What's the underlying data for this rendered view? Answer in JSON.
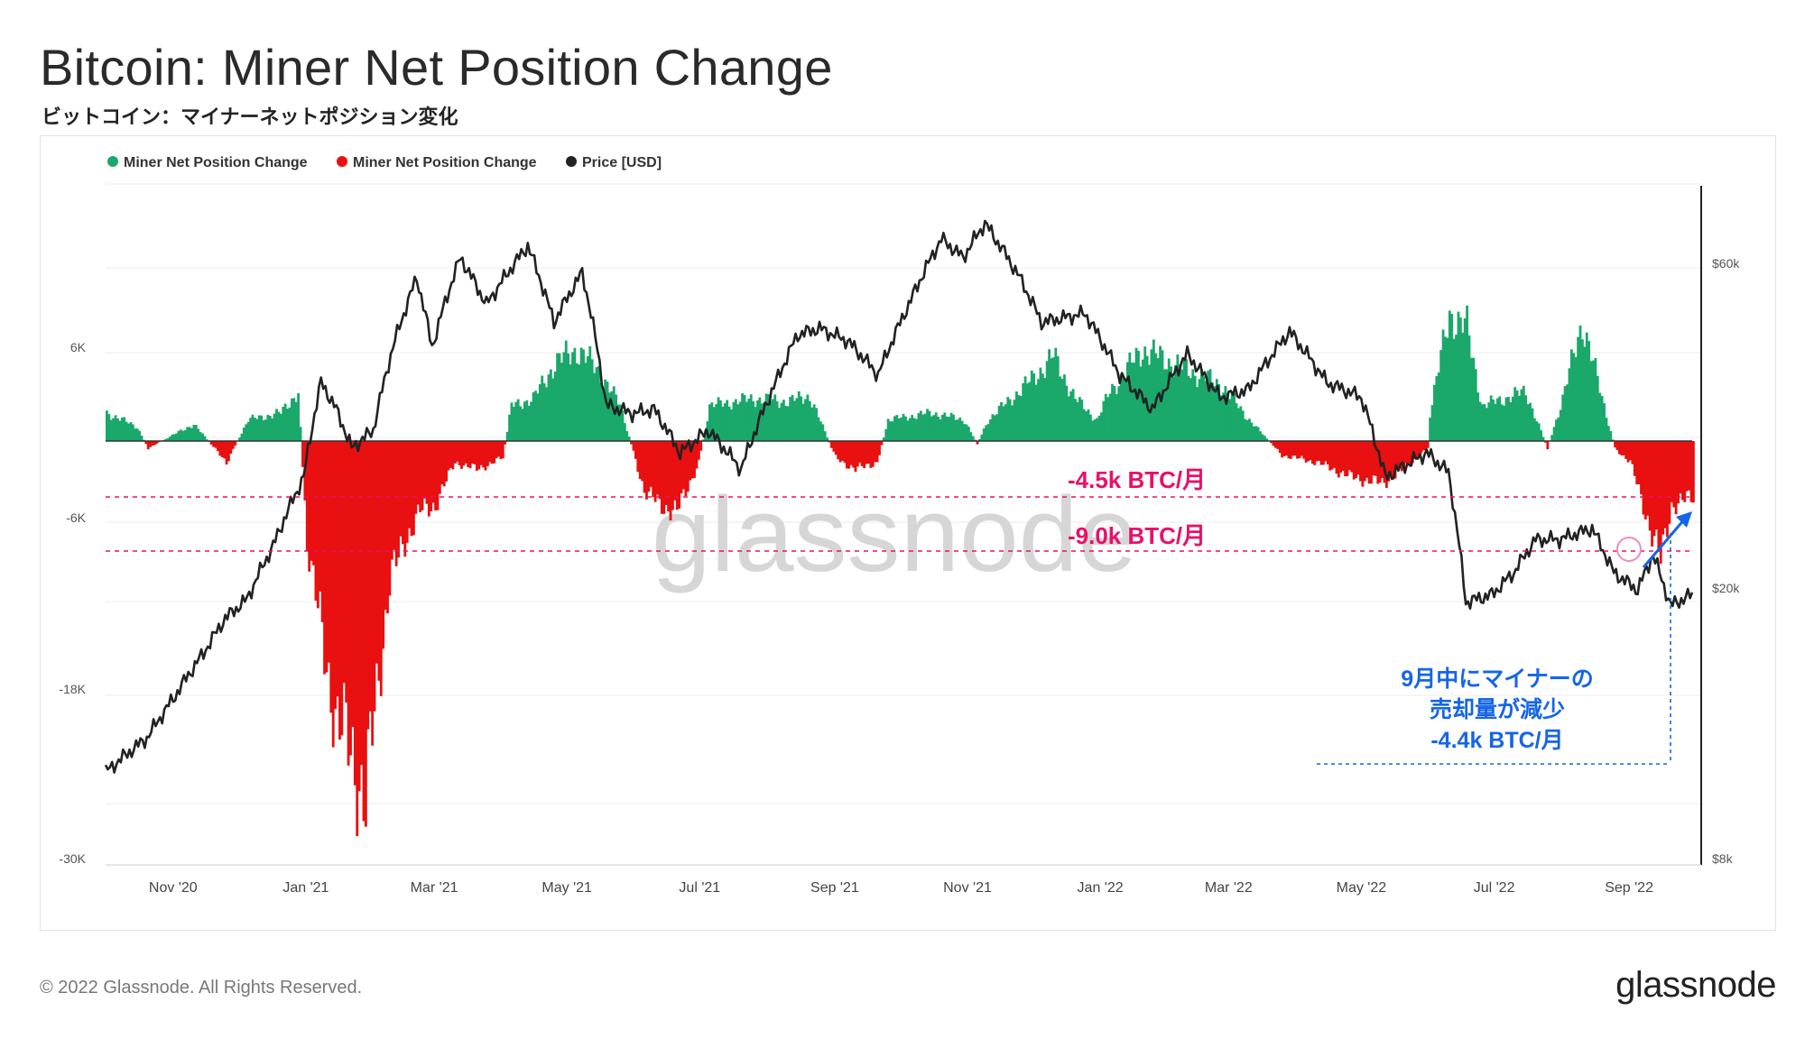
{
  "header": {
    "title": "Bitcoin: Miner Net Position Change",
    "subtitle": "ビットコイン：マイナーネットポジション変化"
  },
  "footer": {
    "copyright": "© 2022 Glassnode. All Rights Reserved.",
    "brand": "glassnode"
  },
  "watermark": "glassnode",
  "colors": {
    "positive": "#1aa86b",
    "negative": "#e81010",
    "price": "#222222",
    "annotation_pink": "#e8106a",
    "annotation_blue": "#1565e8"
  },
  "annotations": {
    "line1": "-4.5k BTC/月",
    "line2": "-9.0k BTC/月",
    "callout": [
      "9月中にマイナーの",
      "売却量が減少",
      "-4.4k BTC/月"
    ]
  },
  "chart_data": {
    "type": "bar",
    "legend": [
      {
        "label": "Miner Net Position Change",
        "color": "#1aa86b"
      },
      {
        "label": "Miner Net Position Change",
        "color": "#e81010"
      },
      {
        "label": "Price [USD]",
        "color": "#222222"
      }
    ],
    "legend_position": "top-left",
    "x_ticks": [
      "Nov '20",
      "Jan '21",
      "Mar '21",
      "May '21",
      "Jul '21",
      "Sep '21",
      "Nov '21",
      "Jan '22",
      "Mar '22",
      "May '22",
      "Jul '22",
      "Sep '22"
    ],
    "left_axis": {
      "ticks": [
        "6K",
        "-6K",
        "-18K",
        "-30K"
      ],
      "ylim": [
        -30000,
        12000
      ]
    },
    "right_axis": {
      "ticks": [
        "$60k",
        "$20k",
        "$8k"
      ],
      "scale": "log"
    },
    "x_range": [
      "2020-10-01",
      "2022-09-30"
    ],
    "series": [
      {
        "name": "Miner Net Position Change",
        "type": "bar",
        "anchors": [
          [
            "2020-10-01",
            2000
          ],
          [
            "2020-10-15",
            1000
          ],
          [
            "2020-10-20",
            -500
          ],
          [
            "2020-11-10",
            1200
          ],
          [
            "2020-11-25",
            -1500
          ],
          [
            "2020-12-05",
            1500
          ],
          [
            "2020-12-20",
            2000
          ],
          [
            "2020-12-28",
            3500
          ],
          [
            "2021-01-01",
            -7000
          ],
          [
            "2021-01-08",
            -14000
          ],
          [
            "2021-01-15",
            -20000
          ],
          [
            "2021-01-22",
            -22000
          ],
          [
            "2021-01-28",
            -26000
          ],
          [
            "2021-02-01",
            -19000
          ],
          [
            "2021-02-08",
            -10000
          ],
          [
            "2021-02-15",
            -7000
          ],
          [
            "2021-02-22",
            -5000
          ],
          [
            "2021-03-01",
            -4500
          ],
          [
            "2021-03-10",
            -1500
          ],
          [
            "2021-03-20",
            -2000
          ],
          [
            "2021-04-01",
            -1200
          ],
          [
            "2021-04-05",
            2500
          ],
          [
            "2021-04-15",
            3000
          ],
          [
            "2021-04-25",
            5500
          ],
          [
            "2021-05-05",
            6500
          ],
          [
            "2021-05-15",
            5000
          ],
          [
            "2021-05-25",
            2500
          ],
          [
            "2021-06-05",
            -3500
          ],
          [
            "2021-06-12",
            -4500
          ],
          [
            "2021-06-20",
            -5000
          ],
          [
            "2021-06-30",
            -1500
          ],
          [
            "2021-07-05",
            2500
          ],
          [
            "2021-07-25",
            3000
          ],
          [
            "2021-08-10",
            2800
          ],
          [
            "2021-08-20",
            3200
          ],
          [
            "2021-09-01",
            -1200
          ],
          [
            "2021-09-10",
            -2000
          ],
          [
            "2021-09-20",
            -1500
          ],
          [
            "2021-09-25",
            1500
          ],
          [
            "2021-10-15",
            2000
          ],
          [
            "2021-10-30",
            1500
          ],
          [
            "2021-11-05",
            -200
          ],
          [
            "2021-11-10",
            1500
          ],
          [
            "2021-12-01",
            4500
          ],
          [
            "2021-12-10",
            6000
          ],
          [
            "2021-12-20",
            3000
          ],
          [
            "2021-12-30",
            1500
          ],
          [
            "2022-01-05",
            3500
          ],
          [
            "2022-01-20",
            6500
          ],
          [
            "2022-02-10",
            5000
          ],
          [
            "2022-02-25",
            4000
          ],
          [
            "2022-03-10",
            1500
          ],
          [
            "2022-03-25",
            -1000
          ],
          [
            "2022-04-10",
            -1500
          ],
          [
            "2022-04-25",
            -2500
          ],
          [
            "2022-05-10",
            -3000
          ],
          [
            "2022-05-20",
            -2000
          ],
          [
            "2022-05-31",
            -500
          ],
          [
            "2022-06-01",
            2000
          ],
          [
            "2022-06-10",
            9000
          ],
          [
            "2022-06-18",
            8000
          ],
          [
            "2022-06-25",
            2500
          ],
          [
            "2022-07-05",
            3000
          ],
          [
            "2022-07-15",
            3500
          ],
          [
            "2022-07-25",
            -500
          ],
          [
            "2022-08-01",
            3000
          ],
          [
            "2022-08-10",
            8500
          ],
          [
            "2022-08-20",
            2500
          ],
          [
            "2022-08-25",
            -500
          ],
          [
            "2022-09-01",
            -1500
          ],
          [
            "2022-09-08",
            -5000
          ],
          [
            "2022-09-15",
            -8500
          ],
          [
            "2022-09-20",
            -4500
          ],
          [
            "2022-09-30",
            -4000
          ]
        ]
      },
      {
        "name": "Price [USD]",
        "type": "line",
        "anchors": [
          [
            "2020-10-01",
            10700
          ],
          [
            "2020-10-20",
            12000
          ],
          [
            "2020-11-01",
            13700
          ],
          [
            "2020-11-15",
            16000
          ],
          [
            "2020-11-25",
            18000
          ],
          [
            "2020-12-05",
            19200
          ],
          [
            "2020-12-17",
            23000
          ],
          [
            "2020-12-31",
            29000
          ],
          [
            "2021-01-08",
            40000
          ],
          [
            "2021-01-15",
            36500
          ],
          [
            "2021-01-22",
            32000
          ],
          [
            "2021-02-01",
            34000
          ],
          [
            "2021-02-10",
            45000
          ],
          [
            "2021-02-21",
            57000
          ],
          [
            "2021-02-28",
            45000
          ],
          [
            "2021-03-13",
            61000
          ],
          [
            "2021-03-25",
            52000
          ],
          [
            "2021-04-13",
            63500
          ],
          [
            "2021-04-25",
            49000
          ],
          [
            "2021-05-08",
            58000
          ],
          [
            "2021-05-19",
            37000
          ],
          [
            "2021-05-31",
            36000
          ],
          [
            "2021-06-10",
            36500
          ],
          [
            "2021-06-22",
            31500
          ],
          [
            "2021-07-05",
            34000
          ],
          [
            "2021-07-20",
            29800
          ],
          [
            "2021-08-05",
            40000
          ],
          [
            "2021-08-15",
            47000
          ],
          [
            "2021-08-25",
            48000
          ],
          [
            "2021-09-07",
            46000
          ],
          [
            "2021-09-21",
            41000
          ],
          [
            "2021-10-05",
            52000
          ],
          [
            "2021-10-20",
            65000
          ],
          [
            "2021-10-30",
            61000
          ],
          [
            "2021-11-09",
            68500
          ],
          [
            "2021-11-25",
            57000
          ],
          [
            "2021-12-05",
            49000
          ],
          [
            "2021-12-25",
            50500
          ],
          [
            "2022-01-10",
            41000
          ],
          [
            "2022-01-25",
            36500
          ],
          [
            "2022-02-10",
            44000
          ],
          [
            "2022-02-25",
            38000
          ],
          [
            "2022-03-10",
            39000
          ],
          [
            "2022-03-29",
            47500
          ],
          [
            "2022-04-15",
            40000
          ],
          [
            "2022-05-01",
            38000
          ],
          [
            "2022-05-12",
            29000
          ],
          [
            "2022-05-31",
            31500
          ],
          [
            "2022-06-10",
            29500
          ],
          [
            "2022-06-18",
            19000
          ],
          [
            "2022-06-30",
            19500
          ],
          [
            "2022-07-10",
            21000
          ],
          [
            "2022-07-20",
            23500
          ],
          [
            "2022-07-31",
            23500
          ],
          [
            "2022-08-15",
            24400
          ],
          [
            "2022-08-25",
            21000
          ],
          [
            "2022-09-05",
            19800
          ],
          [
            "2022-09-12",
            22300
          ],
          [
            "2022-09-20",
            18800
          ],
          [
            "2022-09-30",
            19500
          ]
        ]
      }
    ]
  }
}
